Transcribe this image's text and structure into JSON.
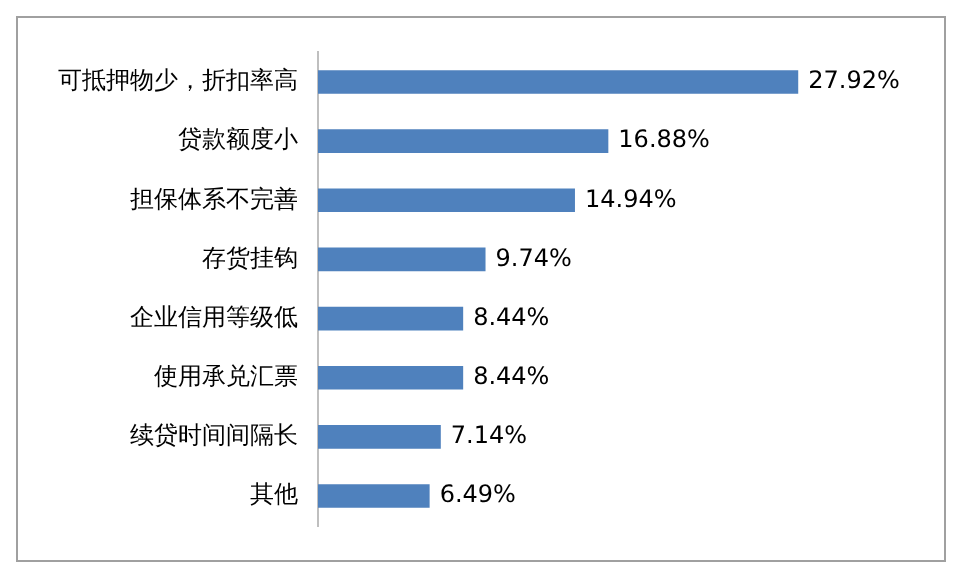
{
  "chart_data": {
    "type": "bar",
    "orientation": "horizontal",
    "categories": [
      "可抵押物少，折扣率高",
      "贷款额度小",
      "担保体系不完善",
      "存货挂钩",
      "企业信用等级低",
      "使用承兑汇票",
      "续贷时间间隔长",
      "其他"
    ],
    "values": [
      27.92,
      16.88,
      14.94,
      9.74,
      8.44,
      8.44,
      7.14,
      6.49
    ],
    "value_labels": [
      "27.92%",
      "16.88%",
      "14.94%",
      "9.74%",
      "8.44%",
      "8.44%",
      "7.14%",
      "6.49%"
    ],
    "color": "#4f81bd",
    "legend": false
  }
}
